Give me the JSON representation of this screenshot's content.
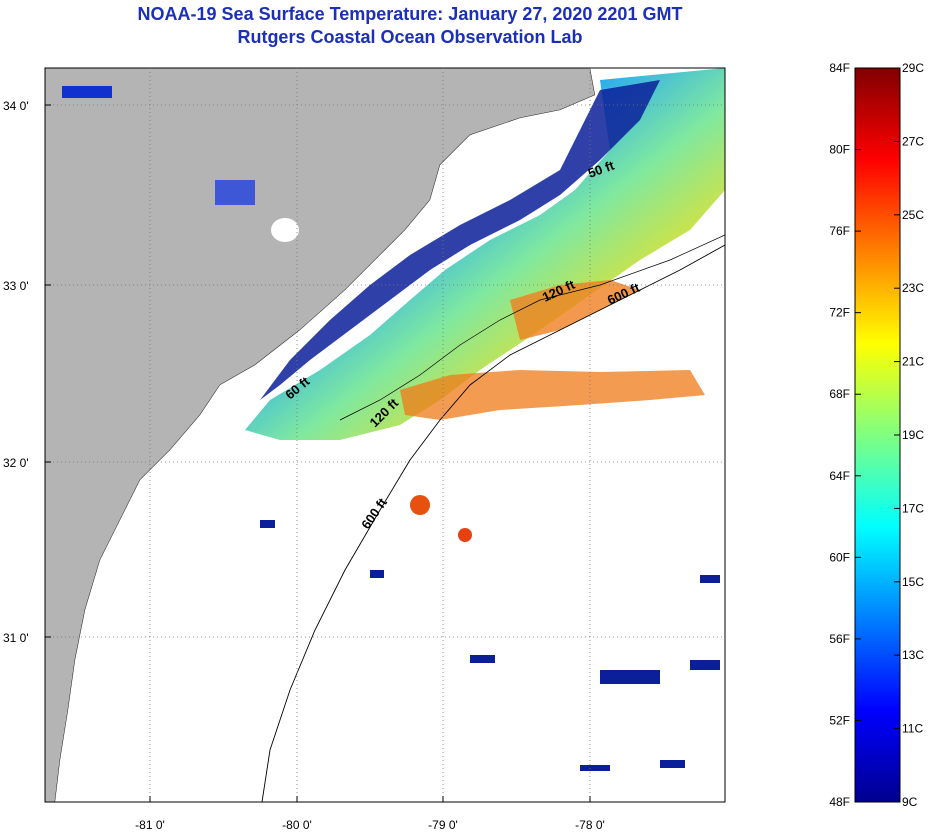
{
  "title": {
    "line1": "NOAA-19 Sea Surface Temperature:  January 27, 2020 2201 GMT",
    "line2": "Rutgers Coastal Ocean Observation Lab"
  },
  "map": {
    "lat_labels": [
      "34 0'",
      "33 0'",
      "32 0'",
      "31 0'"
    ],
    "lon_labels": [
      "-81 0'",
      "-80 0'",
      "-79 0'",
      "-78 0'"
    ],
    "contour_labels": [
      "50 ft",
      "120 ft",
      "600 ft",
      "60 ft",
      "120 ft",
      "600 ft"
    ],
    "colors": {
      "land": "#b4b4b4",
      "ocean_no_data": "#ffffff",
      "coastline": "#000000"
    }
  },
  "colorbar": {
    "fahrenheit_labels": [
      "84F",
      "80F",
      "76F",
      "72F",
      "68F",
      "64F",
      "60F",
      "56F",
      "52F",
      "48F"
    ],
    "celsius_labels": [
      "29C",
      "27C",
      "25C",
      "23C",
      "21C",
      "19C",
      "17C",
      "15C",
      "13C",
      "11C",
      "9C"
    ],
    "colors": [
      "#00008f",
      "#0000ff",
      "#0080ff",
      "#00ffff",
      "#80ff80",
      "#ffff00",
      "#ff8000",
      "#ff0000",
      "#800000"
    ]
  }
}
